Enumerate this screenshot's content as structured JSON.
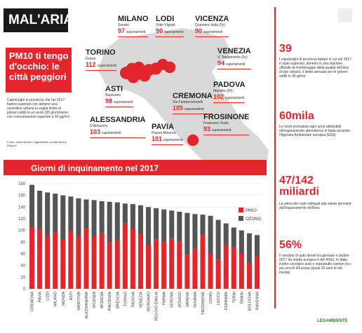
{
  "header": {
    "logo": "MAL'ARIA",
    "title": "PM10 ti tengo d'occhio: le città peggiori",
    "description": "Capoluoghi di provincia che nel 2017 hanno superato con almeno una centralina urbana la soglia limite di polveri sottili in un anno (35 giorni/anno con concentrazioni superiori a 50 µg/m³)",
    "source": "Fonte: elaborazione Legambiente su dati Arpa e Regioni"
  },
  "map": {
    "unit": "superamenti",
    "cities": [
      {
        "name": "MILANO",
        "station": "Senato",
        "value": 97
      },
      {
        "name": "LODI",
        "station": "Viale Vignati",
        "value": 90
      },
      {
        "name": "VICENZA",
        "station": "Quartiere Italia (5o)",
        "value": 90
      },
      {
        "name": "VENEZIA",
        "station": "V. Tagliamento (5o)",
        "value": 94
      },
      {
        "name": "TORINO",
        "station": "Grassi",
        "value": 112
      },
      {
        "name": "ASTI",
        "station": "Baussano",
        "value": 98
      },
      {
        "name": "CREMONA",
        "station": "Via Fatebenefratelli",
        "value": 105
      },
      {
        "name": "PADOVA",
        "station": "Mandria (Ri)",
        "value": 102
      },
      {
        "name": "ALESSANDRIA",
        "station": "D'Annunzio",
        "value": 103
      },
      {
        "name": "PAVIA",
        "station": "Piazza Minerva",
        "value": 101
      },
      {
        "name": "FROSINONE",
        "station": "Frosinone Scalo",
        "value": 93
      }
    ]
  },
  "sidebar": [
    {
      "figure": "39",
      "text": "I capoluoghi di provincia italiani in cui nel 2017 è stato superato, almeno in una stazione ufficiale di monitoraggio della qualità dell'aria di tipo urbano, il limite annuale per le polveri sottili in 35 giorni"
    },
    {
      "figure": "60mila",
      "text": "Le morti premature ogni anno attribuibili all'inquinamento atmosferico in Italia secondo l'Agenzia Ambientale europea (EEA)"
    },
    {
      "figure": "47/142 miliardi",
      "text": "La stima dei costi collegati alla salute derivanti dall'inquinamento dell'aria"
    },
    {
      "figure": "56%",
      "text": "Il venduto di auto diesel tra gennaio e ottobre 2017 (la media europea è del 45%). In Italia inoltre circolano auto e soprattutto camion tra i più vecchi d'Europa (quasi 20 anni di età media)"
    }
  ],
  "footer": "LEGAMBIENTE",
  "chart_data": {
    "type": "stacked_bar",
    "title": "Giorni di inquinamento nel 2017",
    "categories": [
      "CREMONA",
      "PAVIA",
      "LODI",
      "MILANO",
      "MONZA",
      "ASTI",
      "MANTOVA",
      "ALESSANDRIA",
      "VICENZA",
      "MODENA",
      "PIACENZA",
      "BRESCIA",
      "TORINO",
      "PADOVA",
      "VENEZIA",
      "BERGAMO",
      "REGGIO EMILIA",
      "PARMA",
      "VERONA",
      "ROVIGO",
      "VARESE",
      "NOVARA",
      "FROSINONE",
      "COMO",
      "LECCO",
      "FERRARA",
      "TERNI",
      "RIMINI",
      "BOLOGNA",
      "RAVENNA"
    ],
    "series": [
      {
        "name": "PM10",
        "color": "#e3262b",
        "values": [
          105,
          101,
          90,
          97,
          84,
          98,
          90,
          103,
          90,
          95,
          80,
          83,
          112,
          102,
          94,
          75,
          85,
          80,
          86,
          80,
          58,
          68,
          93,
          60,
          50,
          75,
          70,
          60,
          45,
          55
        ]
      },
      {
        "name": "OZONO",
        "color": "#555555",
        "values": [
          73,
          67,
          75,
          66,
          76,
          60,
          65,
          50,
          62,
          55,
          69,
          65,
          34,
          43,
          49,
          65,
          53,
          56,
          48,
          52,
          72,
          60,
          34,
          65,
          68,
          37,
          35,
          40,
          50,
          37
        ]
      }
    ],
    "ylim": [
      0,
      180
    ],
    "yticks": [
      0,
      20,
      40,
      60,
      80,
      100,
      120,
      140,
      160,
      180
    ],
    "grid": true,
    "legend": "right"
  }
}
